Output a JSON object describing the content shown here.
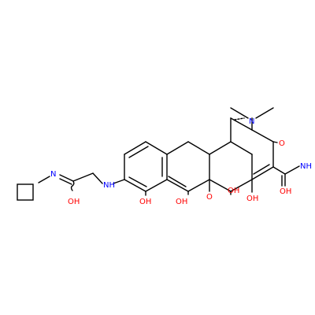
{
  "molecule": {
    "colors": {
      "bond": "#000000",
      "oxygen": "#ff0000",
      "nitrogen": "#0000ff"
    },
    "atoms": [
      {
        "id": "o_ketone_top",
        "text": "O",
        "element": "O"
      },
      {
        "id": "n_dimethyl",
        "text": "N",
        "element": "N"
      },
      {
        "id": "nh_imine",
        "text": "NH",
        "element": "N"
      },
      {
        "id": "oh_amide",
        "text": "OH",
        "element": "O"
      },
      {
        "id": "oh_enol",
        "text": "OH",
        "element": "O"
      },
      {
        "id": "oh_ring_junction",
        "text": "OH",
        "element": "O"
      },
      {
        "id": "o_ketone_bottom",
        "text": "O",
        "element": "O"
      },
      {
        "id": "oh_enol_2",
        "text": "OH",
        "element": "O"
      },
      {
        "id": "oh_phenol",
        "text": "OH",
        "element": "O"
      },
      {
        "id": "nh_linker",
        "text": "NH",
        "element": "N"
      },
      {
        "id": "n_imidate",
        "text": "N",
        "element": "N"
      },
      {
        "id": "oh_imidate",
        "text": "OH",
        "element": "O"
      }
    ]
  }
}
